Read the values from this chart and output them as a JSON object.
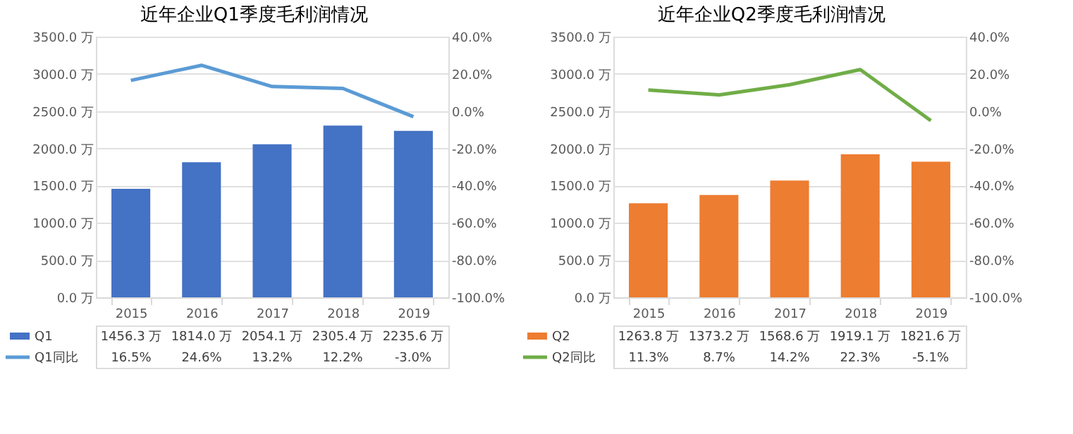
{
  "chart_data": [
    {
      "type": "bar",
      "title": "近年企业Q1季度毛利润情况",
      "categories": [
        "2015",
        "2016",
        "2017",
        "2018",
        "2019"
      ],
      "series": [
        {
          "name": "Q1",
          "color": "#4472c4",
          "values": [
            1456.3,
            1814.0,
            2054.1,
            2305.4,
            2235.6
          ],
          "value_labels": [
            "1456.3 万",
            "1814.0 万",
            "2054.1 万",
            "2305.4 万",
            "2235.6 万"
          ]
        },
        {
          "name": "Q1同比",
          "type": "line",
          "axis": "y2",
          "color": "#5b9bd5",
          "values": [
            16.5,
            24.6,
            13.2,
            12.2,
            -3.0
          ],
          "value_labels": [
            "16.5%",
            "24.6%",
            "13.2%",
            "12.2%",
            "-3.0%"
          ]
        }
      ],
      "ylim": [
        0,
        3500
      ],
      "yticks": [
        {
          "value": 0,
          "label": "0.0 万"
        },
        {
          "value": 500,
          "label": "500.0 万"
        },
        {
          "value": 1000,
          "label": "1000.0 万"
        },
        {
          "value": 1500,
          "label": "1500.0 万"
        },
        {
          "value": 2000,
          "label": "2000.0 万"
        },
        {
          "value": 2500,
          "label": "2500.0 万"
        },
        {
          "value": 3000,
          "label": "3000.0 万"
        },
        {
          "value": 3500,
          "label": "3500.0 万"
        }
      ],
      "y2lim": [
        -100,
        40
      ],
      "y2ticks": [
        {
          "value": -100,
          "label": "-100.0%"
        },
        {
          "value": -80,
          "label": "-80.0%"
        },
        {
          "value": -60,
          "label": "-60.0%"
        },
        {
          "value": -40,
          "label": "-40.0%"
        },
        {
          "value": -20,
          "label": "-20.0%"
        },
        {
          "value": 0,
          "label": "0.0%"
        },
        {
          "value": 20,
          "label": "20.0%"
        },
        {
          "value": 40,
          "label": "40.0%"
        }
      ],
      "grid": "y",
      "legend": "bottom"
    },
    {
      "type": "bar",
      "title": "近年企业Q2季度毛利润情况",
      "categories": [
        "2015",
        "2016",
        "2017",
        "2018",
        "2019"
      ],
      "series": [
        {
          "name": "Q2",
          "color": "#ed7d31",
          "values": [
            1263.8,
            1373.2,
            1568.6,
            1919.1,
            1821.6
          ],
          "value_labels": [
            "1263.8 万",
            "1373.2 万",
            "1568.6 万",
            "1919.1 万",
            "1821.6 万"
          ]
        },
        {
          "name": "Q2同比",
          "type": "line",
          "axis": "y2",
          "color": "#70ad47",
          "values": [
            11.3,
            8.7,
            14.2,
            22.3,
            -5.1
          ],
          "value_labels": [
            "11.3%",
            "8.7%",
            "14.2%",
            "22.3%",
            "-5.1%"
          ]
        }
      ],
      "ylim": [
        0,
        3500
      ],
      "yticks": [
        {
          "value": 0,
          "label": "0.0 万"
        },
        {
          "value": 500,
          "label": "500.0 万"
        },
        {
          "value": 1000,
          "label": "1000.0 万"
        },
        {
          "value": 1500,
          "label": "1500.0 万"
        },
        {
          "value": 2000,
          "label": "2000.0 万"
        },
        {
          "value": 2500,
          "label": "2500.0 万"
        },
        {
          "value": 3000,
          "label": "3000.0 万"
        },
        {
          "value": 3500,
          "label": "3500.0 万"
        }
      ],
      "y2lim": [
        -100,
        40
      ],
      "y2ticks": [
        {
          "value": -100,
          "label": "-100.0%"
        },
        {
          "value": -80,
          "label": "-80.0%"
        },
        {
          "value": -60,
          "label": "-60.0%"
        },
        {
          "value": -40,
          "label": "-40.0%"
        },
        {
          "value": -20,
          "label": "-20.0%"
        },
        {
          "value": 0,
          "label": "0.0%"
        },
        {
          "value": 20,
          "label": "20.0%"
        },
        {
          "value": 40,
          "label": "40.0%"
        }
      ],
      "grid": "y",
      "legend": "bottom"
    }
  ]
}
